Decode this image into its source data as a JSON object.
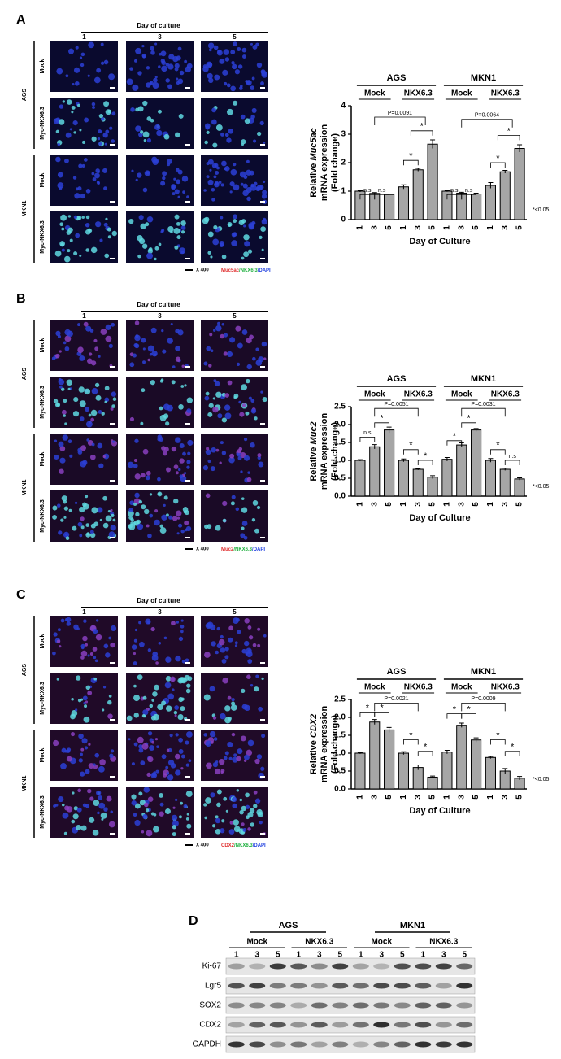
{
  "panels": [
    {
      "label": "A",
      "day_header": "Day of culture",
      "days": [
        "1",
        "3",
        "5"
      ],
      "cell_lines": [
        "AGS",
        "MKN1"
      ],
      "rows": [
        "Mock",
        "Myc-NKX6.3",
        "Mock",
        "Myc-NKX6.3"
      ],
      "scale": "X 400",
      "stain": [
        "Muc5ac",
        "/NKX6.3",
        "/DAPI"
      ]
    },
    {
      "label": "B",
      "day_header": "Day of culture",
      "days": [
        "1",
        "3",
        "5"
      ],
      "cell_lines": [
        "AGS",
        "MKN1"
      ],
      "rows": [
        "Mock",
        "Myc-NKX6.3",
        "Mock",
        "Myc-NKX6.3"
      ],
      "scale": "X 400",
      "stain": [
        "Muc2",
        "/NKX6.3",
        "/DAPI"
      ]
    },
    {
      "label": "C",
      "day_header": "Day of culture",
      "days": [
        "1",
        "3",
        "5"
      ],
      "cell_lines": [
        "AGS",
        "MKN1"
      ],
      "rows": [
        "Mock",
        "Myc-NKX6.3",
        "Mock",
        "Myc-NKX6.3"
      ],
      "scale": "X 400",
      "stain": [
        "CDX2",
        "/NKX6.3",
        "/DAPI"
      ]
    }
  ],
  "chart_data": [
    {
      "type": "bar",
      "ylabel": [
        "Relative",
        "Muc5ac",
        "mRNA expression",
        "(Fold change)"
      ],
      "xlabel": "Day of Culture",
      "groups": [
        "AGS",
        "MKN1"
      ],
      "subgroups": [
        "Mock",
        "NKX6.3",
        "Mock",
        "NKX6.3"
      ],
      "categories": [
        "1",
        "3",
        "5",
        "1",
        "3",
        "5",
        "1",
        "3",
        "5",
        "1",
        "3",
        "5"
      ],
      "values": [
        1.0,
        0.92,
        0.88,
        1.15,
        1.75,
        2.65,
        1.0,
        0.93,
        0.9,
        1.2,
        1.68,
        2.5
      ],
      "errors": [
        0.03,
        0.03,
        0.02,
        0.07,
        0.05,
        0.15,
        0.02,
        0.03,
        0.03,
        0.1,
        0.05,
        0.13
      ],
      "color": "#a6a6a6",
      "ylim": [
        0,
        4
      ],
      "yticks": [
        0,
        1,
        2,
        3,
        4
      ],
      "annotations": [
        "P=0.0091",
        "*",
        "*",
        "n.s",
        "n.s",
        "P=0.0064",
        "*",
        "*",
        "n.s",
        "n.s"
      ],
      "footnote": "*<0.05"
    },
    {
      "type": "bar",
      "ylabel": [
        "Relative",
        "Muc2",
        "mRNA expression",
        "(Fold change)"
      ],
      "xlabel": "Day of Culture",
      "groups": [
        "AGS",
        "MKN1"
      ],
      "subgroups": [
        "Mock",
        "NKX6.3",
        "Mock",
        "NKX6.3"
      ],
      "categories": [
        "1",
        "3",
        "5",
        "1",
        "3",
        "5",
        "1",
        "3",
        "5",
        "1",
        "3",
        "5"
      ],
      "values": [
        1.0,
        1.38,
        1.85,
        1.0,
        0.75,
        0.53,
        1.03,
        1.43,
        1.85,
        1.0,
        0.75,
        0.48
      ],
      "errors": [
        0.02,
        0.06,
        0.08,
        0.04,
        0.02,
        0.04,
        0.05,
        0.06,
        0.04,
        0.05,
        0.03,
        0.03
      ],
      "color": "#a6a6a6",
      "ylim": [
        0,
        2.5
      ],
      "yticks": [
        {
          "value": 0,
          "label": "0.0"
        },
        {
          "value": 0.5,
          "label": "0.5"
        },
        {
          "value": 1,
          "label": "1.0"
        },
        {
          "value": 1.5,
          "label": "1.5"
        },
        {
          "value": 2,
          "label": "2.0"
        },
        {
          "value": 2.5,
          "label": "2.5"
        }
      ],
      "annotations": [
        "P=0.0051",
        "n.s",
        "*",
        "*",
        "*",
        "P=0.0031",
        "*",
        "*",
        "*",
        "n.s"
      ],
      "footnote": "*<0.05"
    },
    {
      "type": "bar",
      "ylabel": [
        "Relative",
        "CDX2",
        "mRNA expression",
        "(Fold change)"
      ],
      "xlabel": "Day of Culture",
      "groups": [
        "AGS",
        "MKN1"
      ],
      "subgroups": [
        "Mock",
        "NKX6.3",
        "Mock",
        "NKX6.3"
      ],
      "categories": [
        "1",
        "3",
        "5",
        "1",
        "3",
        "5",
        "1",
        "3",
        "5",
        "1",
        "3",
        "5"
      ],
      "values": [
        1.0,
        1.87,
        1.65,
        1.0,
        0.6,
        0.33,
        1.03,
        1.78,
        1.37,
        0.88,
        0.5,
        0.3
      ],
      "errors": [
        0.02,
        0.07,
        0.07,
        0.04,
        0.07,
        0.03,
        0.05,
        0.06,
        0.06,
        0.03,
        0.07,
        0.05
      ],
      "color": "#a6a6a6",
      "ylim": [
        0,
        2.5
      ],
      "yticks": [
        {
          "value": 0,
          "label": "0.0"
        },
        {
          "value": 0.5,
          "label": "0.5"
        },
        {
          "value": 1,
          "label": "1.0"
        },
        {
          "value": 1.5,
          "label": "1.5"
        },
        {
          "value": 2,
          "label": "2.0"
        },
        {
          "value": 2.5,
          "label": "2.5"
        }
      ],
      "annotations": [
        "P=0.0021",
        "*",
        "*",
        "*",
        "*",
        "P=0.0009",
        "*",
        "*",
        "*",
        "*"
      ],
      "footnote": "*<0.05"
    }
  ],
  "blot": {
    "label": "D",
    "cell_lines": [
      "AGS",
      "MKN1"
    ],
    "groups": [
      "Mock",
      "NKX6.3",
      "Mock",
      "NKX6.3"
    ],
    "lanes": [
      "1",
      "3",
      "5",
      "1",
      "3",
      "5",
      "1",
      "3",
      "5",
      "1",
      "3",
      "5"
    ],
    "rows": [
      "Ki-67",
      "Lgr5",
      "SOX2",
      "CDX2",
      "GAPDH"
    ]
  }
}
